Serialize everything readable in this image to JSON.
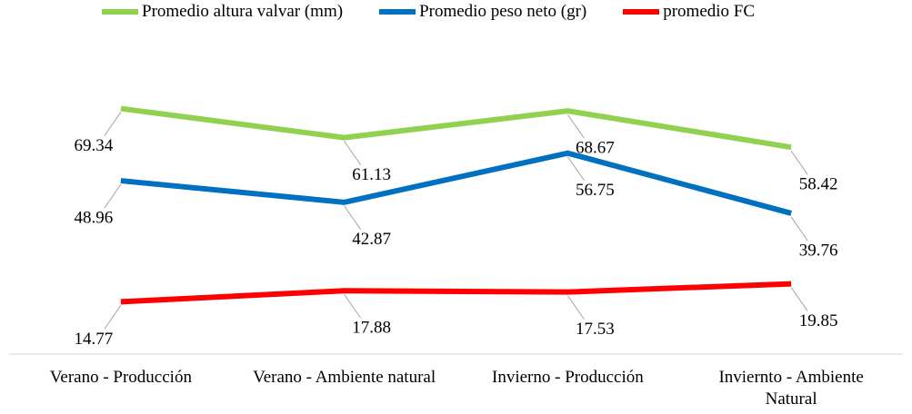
{
  "chart_data": {
    "type": "line",
    "categories": [
      "Verano - Producción",
      "Verano - Ambiente natural",
      "Invierno - Producción",
      "Inviernto - Ambiente Natural"
    ],
    "series": [
      {
        "name": "Promedio altura valvar (mm)",
        "color": "#92d050",
        "values": [
          69.34,
          61.13,
          68.67,
          58.42
        ]
      },
      {
        "name": "Promedio peso neto (gr)",
        "color": "#0070c0",
        "values": [
          48.96,
          42.87,
          56.75,
          39.76
        ]
      },
      {
        "name": "promedio FC",
        "color": "#ff0000",
        "values": [
          14.77,
          17.88,
          17.53,
          19.85
        ]
      }
    ],
    "ylim": [
      0,
      80
    ],
    "legend": "top"
  }
}
